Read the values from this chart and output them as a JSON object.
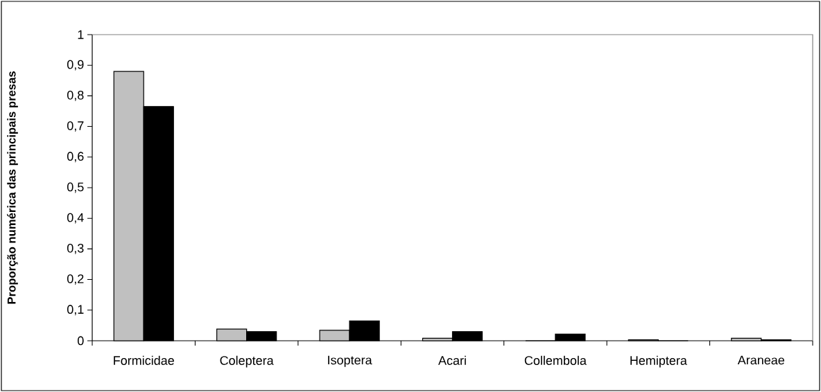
{
  "chart_data": {
    "type": "bar",
    "ylabel": "Proporção numérica das principais presas",
    "categories": [
      "Formicidae",
      "Coleptera",
      "Isoptera",
      "Acari",
      "Collembola",
      "Hemiptera",
      "Araneae"
    ],
    "series": [
      {
        "color": "#c0c0c0",
        "values": [
          0.88,
          0.038,
          0.034,
          0.008,
          0,
          0.003,
          0.008
        ]
      },
      {
        "color": "#000000",
        "values": [
          0.765,
          0.03,
          0.065,
          0.03,
          0.022,
          0,
          0.003
        ]
      }
    ],
    "ylim": [
      0,
      1
    ],
    "yticks": [
      0,
      {
        "value": 0.1,
        "label": "0,1"
      },
      {
        "value": 0.2,
        "label": "0,2"
      },
      {
        "value": 0.3,
        "label": "0,3"
      },
      {
        "value": 0.4,
        "label": "0,4"
      },
      {
        "value": 0.5,
        "label": "0,5"
      },
      {
        "value": 0.6,
        "label": "0,6"
      },
      {
        "value": 0.7,
        "label": "0,7"
      },
      {
        "value": 0.8,
        "label": "0,8"
      },
      {
        "value": 0.9,
        "label": "0,9"
      },
      1
    ],
    "grid": false
  }
}
